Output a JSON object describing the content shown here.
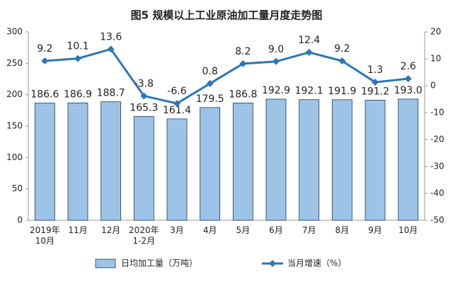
{
  "chart_data": {
    "type": "bar",
    "title": "图5  规模以上工业原油加工量月度走势图",
    "categories": [
      "2019年\n10月",
      "11月",
      "12月",
      "2020年\n1-2月",
      "3月",
      "4月",
      "5月",
      "6月",
      "7月",
      "8月",
      "9月",
      "10月"
    ],
    "series": [
      {
        "name": "日均加工量（万吨）",
        "type": "bar",
        "color": "#9dc3e6",
        "values": [
          186.6,
          186.9,
          188.7,
          165.3,
          161.4,
          179.5,
          186.8,
          192.9,
          192.1,
          191.9,
          191.2,
          193.0
        ],
        "value_labels": [
          "186.6",
          "186.9",
          "188.7",
          "165.3",
          "161.4",
          "179.5",
          "186.8",
          "192.9",
          "192.1",
          "191.9",
          "191.2",
          "193.0"
        ]
      },
      {
        "name": "当月增速（%）",
        "type": "line",
        "axis": "y2",
        "color": "#2e75b6",
        "values": [
          9.2,
          10.1,
          13.6,
          -3.8,
          -6.6,
          0.8,
          8.2,
          9.0,
          12.4,
          9.2,
          1.3,
          2.6
        ],
        "value_labels": [
          "9.2",
          "10.1",
          "13.6",
          "-3.8",
          "-6.6",
          "0.8",
          "8.2",
          "9.0",
          "12.4",
          "9.2",
          "1.3",
          "2.6"
        ]
      }
    ],
    "ylim": [
      0,
      300
    ],
    "yticks": [
      0,
      50,
      100,
      150,
      200,
      250,
      300
    ],
    "y2lim": [
      -50,
      20
    ],
    "y2ticks": [
      -50,
      -40,
      -30,
      -20,
      -10,
      0,
      10,
      20
    ],
    "grid": false,
    "legend": "bottom"
  }
}
